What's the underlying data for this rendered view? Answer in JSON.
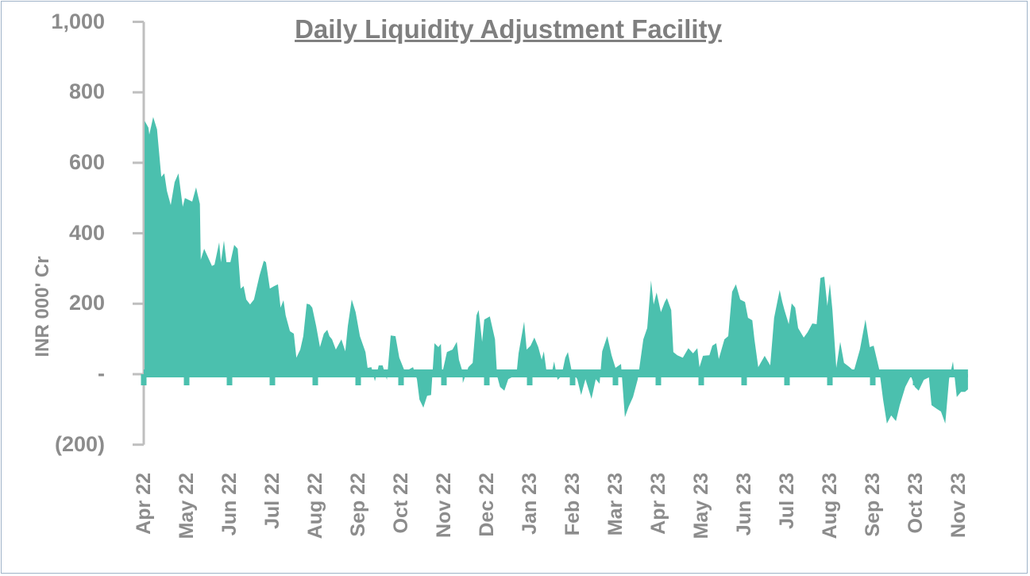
{
  "chart_data": {
    "type": "area",
    "title": "Daily Liquidity Adjustment Facility",
    "xlabel": "",
    "ylabel": "INR 000' Cr",
    "ylim": [
      -200,
      1000
    ],
    "yticks": [
      1000,
      800,
      600,
      400,
      200,
      0,
      -200
    ],
    "ytick_labels": [
      "1,000",
      "800",
      "600",
      "400",
      "200",
      "-",
      "(200)"
    ],
    "x_unit": "months since start of Apr 22",
    "xtick_labels": [
      "Apr 22",
      "May 22",
      "Jun 22",
      "Jul 22",
      "Aug 22",
      "Sep 22",
      "Oct 22",
      "Nov 22",
      "Dec 22",
      "Jan 23",
      "Feb 23",
      "Mar 23",
      "Apr 23",
      "May 23",
      "Jun 23",
      "Jul 23",
      "Aug 23",
      "Sep 23",
      "Oct 23",
      "Nov 23"
    ],
    "grid": false,
    "color": "#4bc0ae",
    "series": [
      {
        "name": "Daily LAF",
        "points": [
          [
            0.02,
            719
          ],
          [
            0.11,
            700
          ],
          [
            0.13,
            680
          ],
          [
            0.22,
            730
          ],
          [
            0.31,
            695
          ],
          [
            0.41,
            560
          ],
          [
            0.48,
            570
          ],
          [
            0.54,
            520
          ],
          [
            0.63,
            480
          ],
          [
            0.72,
            545
          ],
          [
            0.81,
            570
          ],
          [
            0.91,
            475
          ],
          [
            0.96,
            500
          ],
          [
            1.13,
            490
          ],
          [
            1.22,
            530
          ],
          [
            1.31,
            483
          ],
          [
            1.33,
            325
          ],
          [
            1.41,
            356
          ],
          [
            1.59,
            307
          ],
          [
            1.65,
            311
          ],
          [
            1.76,
            374
          ],
          [
            1.8,
            318
          ],
          [
            1.87,
            379
          ],
          [
            1.93,
            318
          ],
          [
            2.02,
            318
          ],
          [
            2.11,
            367
          ],
          [
            2.19,
            356
          ],
          [
            2.26,
            243
          ],
          [
            2.33,
            250
          ],
          [
            2.39,
            212
          ],
          [
            2.48,
            198
          ],
          [
            2.57,
            212
          ],
          [
            2.7,
            280
          ],
          [
            2.8,
            322
          ],
          [
            2.85,
            318
          ],
          [
            2.94,
            243
          ],
          [
            3.04,
            250
          ],
          [
            3.13,
            255
          ],
          [
            3.19,
            189
          ],
          [
            3.26,
            210
          ],
          [
            3.31,
            167
          ],
          [
            3.41,
            122
          ],
          [
            3.5,
            115
          ],
          [
            3.56,
            47
          ],
          [
            3.65,
            70
          ],
          [
            3.72,
            108
          ],
          [
            3.8,
            200
          ],
          [
            3.87,
            198
          ],
          [
            3.93,
            189
          ],
          [
            4.02,
            137
          ],
          [
            4.11,
            77
          ],
          [
            4.2,
            115
          ],
          [
            4.28,
            126
          ],
          [
            4.33,
            108
          ],
          [
            4.39,
            99
          ],
          [
            4.48,
            70
          ],
          [
            4.61,
            99
          ],
          [
            4.7,
            65
          ],
          [
            4.76,
            137
          ],
          [
            4.85,
            212
          ],
          [
            4.94,
            176
          ],
          [
            5.04,
            108
          ],
          [
            5.17,
            63
          ],
          [
            5.22,
            18
          ],
          [
            5.31,
            20
          ],
          [
            5.39,
            -20
          ],
          [
            5.48,
            25
          ],
          [
            5.57,
            25
          ],
          [
            5.67,
            -16
          ],
          [
            5.76,
            110
          ],
          [
            5.87,
            108
          ],
          [
            5.96,
            47
          ],
          [
            6.09,
            7
          ],
          [
            6.28,
            20
          ],
          [
            6.37,
            -14
          ],
          [
            6.43,
            -72
          ],
          [
            6.52,
            -95
          ],
          [
            6.61,
            -61
          ],
          [
            6.7,
            -59
          ],
          [
            6.78,
            88
          ],
          [
            6.87,
            77
          ],
          [
            6.93,
            86
          ],
          [
            6.96,
            2
          ],
          [
            7.07,
            63
          ],
          [
            7.2,
            70
          ],
          [
            7.3,
            92
          ],
          [
            7.35,
            41
          ],
          [
            7.43,
            9
          ],
          [
            7.44,
            -25
          ],
          [
            7.57,
            20
          ],
          [
            7.67,
            32
          ],
          [
            7.76,
            167
          ],
          [
            7.81,
            182
          ],
          [
            7.89,
            92
          ],
          [
            7.94,
            155
          ],
          [
            8.07,
            164
          ],
          [
            8.19,
            99
          ],
          [
            8.24,
            -5
          ],
          [
            8.31,
            -36
          ],
          [
            8.41,
            -47
          ],
          [
            8.5,
            -14
          ],
          [
            8.69,
            -2
          ],
          [
            8.74,
            59
          ],
          [
            8.87,
            149
          ],
          [
            8.93,
            70
          ],
          [
            9.02,
            81
          ],
          [
            9.11,
            104
          ],
          [
            9.2,
            77
          ],
          [
            9.28,
            41
          ],
          [
            9.33,
            65
          ],
          [
            9.39,
            9
          ],
          [
            9.52,
            7
          ],
          [
            9.57,
            36
          ],
          [
            9.65,
            -16
          ],
          [
            9.74,
            -5
          ],
          [
            9.83,
            47
          ],
          [
            9.89,
            63
          ],
          [
            9.98,
            9
          ],
          [
            10.11,
            -14
          ],
          [
            10.2,
            -59
          ],
          [
            10.3,
            -14
          ],
          [
            10.44,
            -70
          ],
          [
            10.54,
            -14
          ],
          [
            10.63,
            -27
          ],
          [
            10.69,
            65
          ],
          [
            10.81,
            108
          ],
          [
            10.91,
            54
          ],
          [
            11.0,
            18
          ],
          [
            11.13,
            29
          ],
          [
            11.22,
            -122
          ],
          [
            11.31,
            -92
          ],
          [
            11.41,
            -65
          ],
          [
            11.52,
            -14
          ],
          [
            11.65,
            99
          ],
          [
            11.74,
            131
          ],
          [
            11.83,
            266
          ],
          [
            11.89,
            198
          ],
          [
            11.96,
            232
          ],
          [
            12.06,
            176
          ],
          [
            12.15,
            205
          ],
          [
            12.2,
            216
          ],
          [
            12.3,
            182
          ],
          [
            12.35,
            63
          ],
          [
            12.44,
            54
          ],
          [
            12.57,
            47
          ],
          [
            12.7,
            74
          ],
          [
            12.81,
            59
          ],
          [
            12.91,
            74
          ],
          [
            12.96,
            20
          ],
          [
            13.04,
            52
          ],
          [
            13.19,
            54
          ],
          [
            13.26,
            81
          ],
          [
            13.35,
            88
          ],
          [
            13.41,
            43
          ],
          [
            13.54,
            99
          ],
          [
            13.63,
            108
          ],
          [
            13.72,
            234
          ],
          [
            13.81,
            255
          ],
          [
            13.91,
            212
          ],
          [
            14.02,
            205
          ],
          [
            14.09,
            160
          ],
          [
            14.19,
            153
          ],
          [
            14.24,
            99
          ],
          [
            14.33,
            20
          ],
          [
            14.48,
            52
          ],
          [
            14.61,
            25
          ],
          [
            14.7,
            160
          ],
          [
            14.83,
            239
          ],
          [
            14.89,
            205
          ],
          [
            14.94,
            182
          ],
          [
            15.04,
            142
          ],
          [
            15.11,
            201
          ],
          [
            15.19,
            189
          ],
          [
            15.26,
            131
          ],
          [
            15.39,
            104
          ],
          [
            15.48,
            119
          ],
          [
            15.59,
            144
          ],
          [
            15.69,
            142
          ],
          [
            15.78,
            273
          ],
          [
            15.87,
            277
          ],
          [
            15.94,
            194
          ],
          [
            16.0,
            257
          ],
          [
            16.06,
            182
          ],
          [
            16.15,
            18
          ],
          [
            16.24,
            92
          ],
          [
            16.33,
            32
          ],
          [
            16.46,
            20
          ],
          [
            16.56,
            9
          ],
          [
            16.7,
            70
          ],
          [
            16.83,
            155
          ],
          [
            16.93,
            77
          ],
          [
            17.02,
            81
          ],
          [
            17.15,
            14
          ],
          [
            17.24,
            -72
          ],
          [
            17.33,
            -140
          ],
          [
            17.43,
            -117
          ],
          [
            17.54,
            -133
          ],
          [
            17.63,
            -88
          ],
          [
            17.76,
            -36
          ],
          [
            17.89,
            -5
          ],
          [
            17.98,
            -36
          ],
          [
            18.07,
            -47
          ],
          [
            18.19,
            -16
          ],
          [
            18.31,
            -9
          ],
          [
            18.37,
            -88
          ],
          [
            18.5,
            -99
          ],
          [
            18.59,
            -106
          ],
          [
            18.69,
            -140
          ],
          [
            18.78,
            -14
          ],
          [
            18.87,
            36
          ],
          [
            18.96,
            -65
          ],
          [
            19.06,
            -50
          ],
          [
            19.15,
            -50
          ],
          [
            19.22,
            -43
          ]
        ]
      }
    ]
  }
}
